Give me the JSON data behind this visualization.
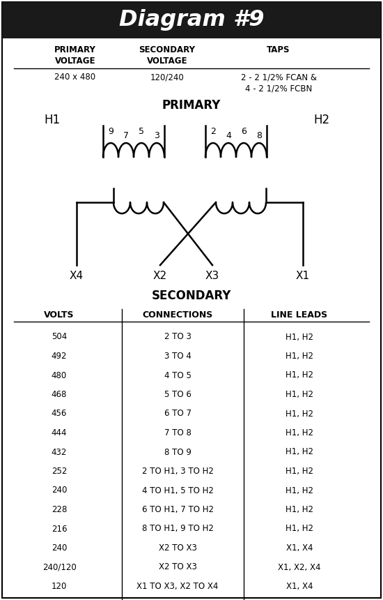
{
  "title": "Diagram #9",
  "title_bg": "#1a1a1a",
  "title_color": "#ffffff",
  "primary_voltage": "240 x 480",
  "secondary_voltage": "120/240",
  "taps": "2 - 2 1/2% FCAN &\n4 - 2 1/2% FCBN",
  "primary_label": "PRIMARY",
  "secondary_label": "SECONDARY",
  "h1_label": "H1",
  "h2_label": "H2",
  "tap_numbers_left": [
    "9",
    "7",
    "5",
    "3"
  ],
  "tap_numbers_right": [
    "2",
    "4",
    "6",
    "8"
  ],
  "table_headers": [
    "VOLTS",
    "CONNECTIONS",
    "LINE LEADS"
  ],
  "table_rows": [
    [
      "504",
      "2 TO 3",
      "H1, H2"
    ],
    [
      "492",
      "3 TO 4",
      "H1, H2"
    ],
    [
      "480",
      "4 TO 5",
      "H1, H2"
    ],
    [
      "468",
      "5 TO 6",
      "H1, H2"
    ],
    [
      "456",
      "6 TO 7",
      "H1, H2"
    ],
    [
      "444",
      "7 TO 8",
      "H1, H2"
    ],
    [
      "432",
      "8 TO 9",
      "H1, H2"
    ],
    [
      "252",
      "2 TO H1, 3 TO H2",
      "H1, H2"
    ],
    [
      "240",
      "4 TO H1, 5 TO H2",
      "H1, H2"
    ],
    [
      "228",
      "6 TO H1, 7 TO H2",
      "H1, H2"
    ],
    [
      "216",
      "8 TO H1, 9 TO H2",
      "H1, H2"
    ],
    [
      "240",
      "X2 TO X3",
      "X1, X4"
    ],
    [
      "240/120",
      "X2 TO X3",
      "X1, X2, X4"
    ],
    [
      "120",
      "X1 TO X3, X2 TO X4",
      "X1, X4"
    ]
  ],
  "background_color": "#ffffff",
  "line_color": "#000000"
}
